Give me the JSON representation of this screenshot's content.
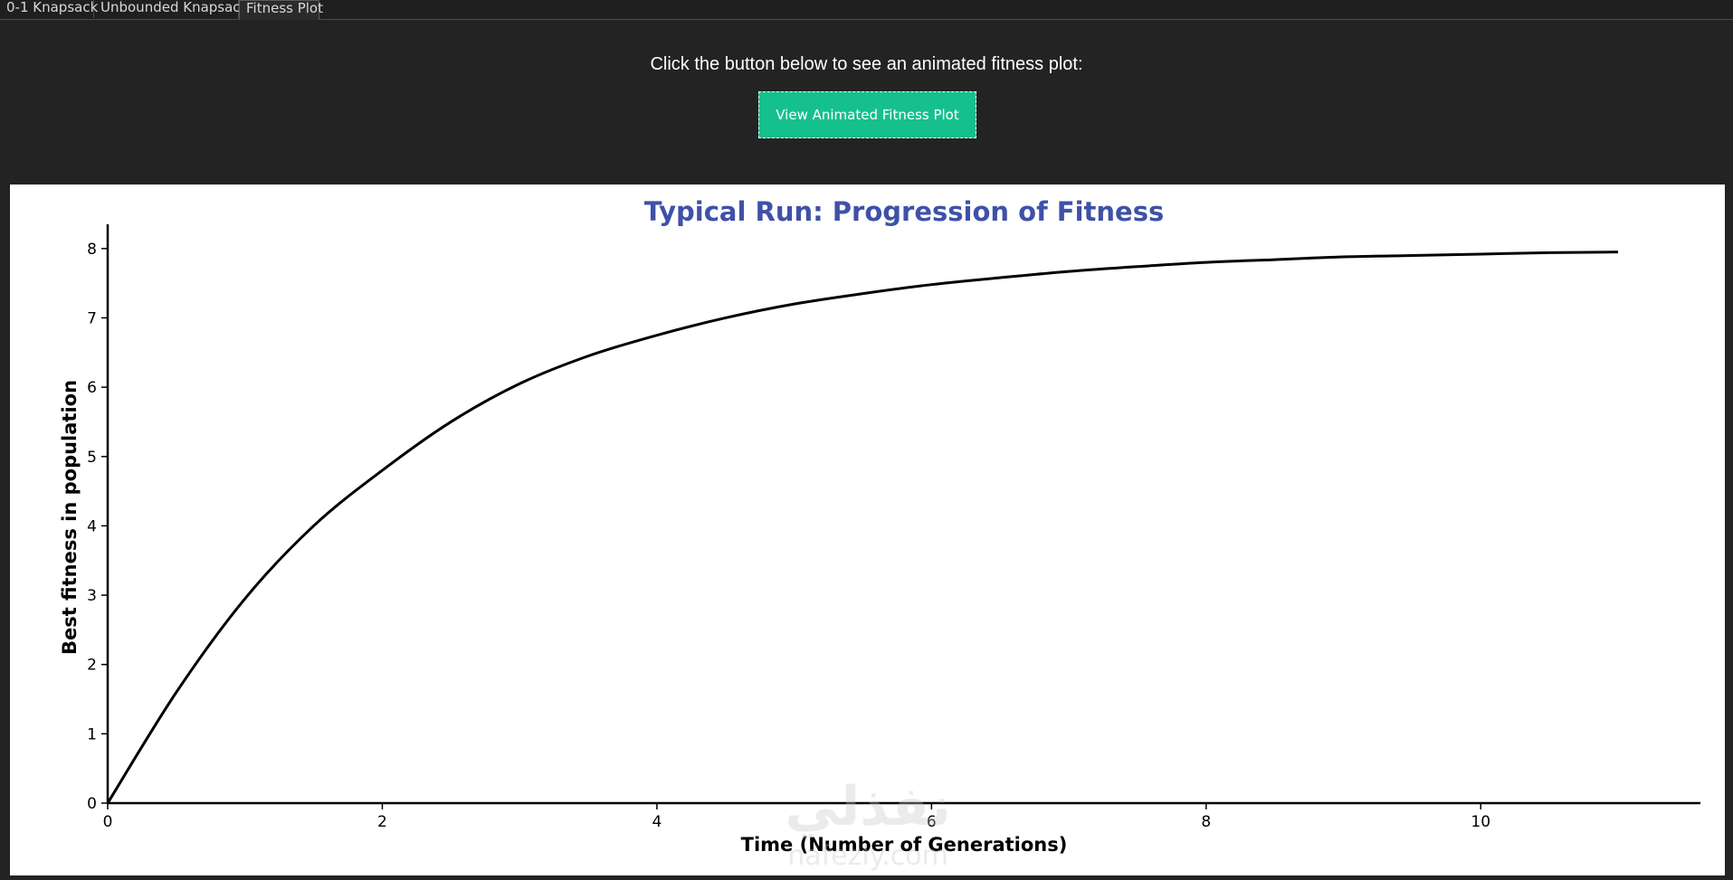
{
  "tabs": [
    {
      "label": "0-1 Knapsack"
    },
    {
      "label": "Unbounded Knapsack"
    },
    {
      "label": "Fitness Plot"
    }
  ],
  "prompt_text": "Click the button below to see an animated fitness plot:",
  "view_button_label": "View Animated Fitness Plot",
  "watermark": {
    "arabic": "نفذلي",
    "latin": "nafezly.com"
  },
  "colors": {
    "accent": "#16c08d",
    "title": "#3f51a8",
    "background": "#232323"
  },
  "chart_data": {
    "type": "line",
    "title": "Typical Run: Progression of Fitness",
    "xlabel": "Time (Number of Generations)",
    "ylabel": "Best fitness in population",
    "xlim": [
      0,
      11.6
    ],
    "ylim": [
      0,
      8.35
    ],
    "xticks": [
      0,
      2,
      4,
      6,
      8,
      10
    ],
    "yticks": [
      0,
      1,
      2,
      3,
      4,
      5,
      6,
      7,
      8
    ],
    "grid": false,
    "series": [
      {
        "x": [
          0,
          0.5,
          1,
          1.5,
          2,
          2.5,
          3,
          3.5,
          4,
          4.5,
          5,
          5.5,
          6,
          6.5,
          7,
          7.5,
          8,
          8.5,
          9,
          9.5,
          10,
          10.5,
          11
        ],
        "y": [
          0,
          1.6,
          2.95,
          4.0,
          4.8,
          5.5,
          6.05,
          6.45,
          6.75,
          7.0,
          7.2,
          7.35,
          7.48,
          7.58,
          7.67,
          7.74,
          7.8,
          7.84,
          7.88,
          7.9,
          7.92,
          7.94,
          7.95
        ]
      }
    ]
  }
}
